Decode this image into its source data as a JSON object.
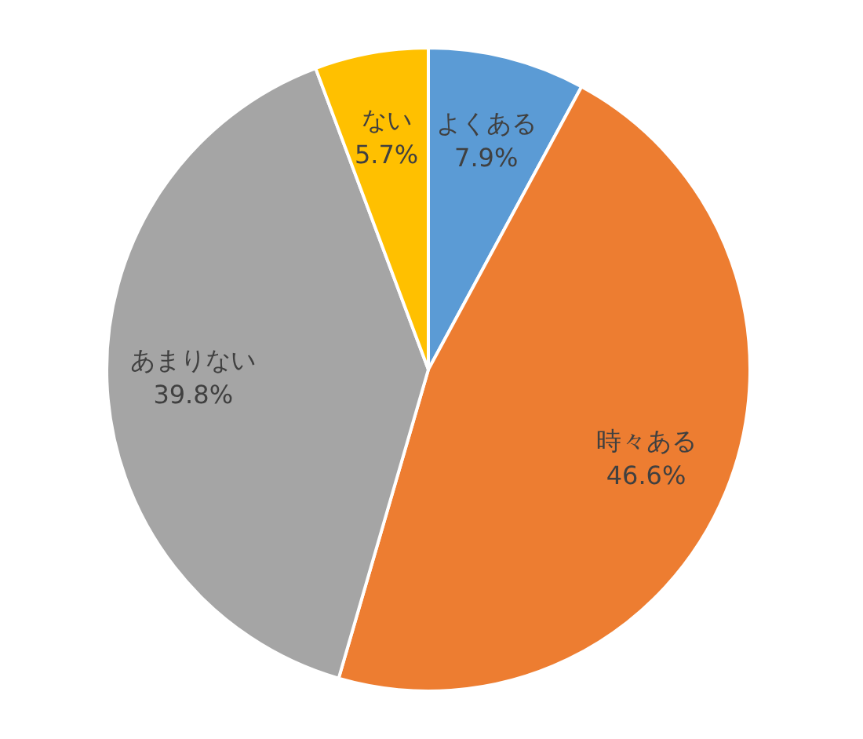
{
  "chart_data": {
    "type": "pie",
    "categories": [
      "よくある",
      "時々ある",
      "あまりない",
      "ない"
    ],
    "values": [
      7.9,
      46.6,
      39.8,
      5.7
    ],
    "value_labels": [
      "7.9%",
      "46.6%",
      "39.8%",
      "5.7%"
    ],
    "colors": [
      "#5b9bd5",
      "#ed7d31",
      "#a5a5a5",
      "#ffc000"
    ]
  }
}
